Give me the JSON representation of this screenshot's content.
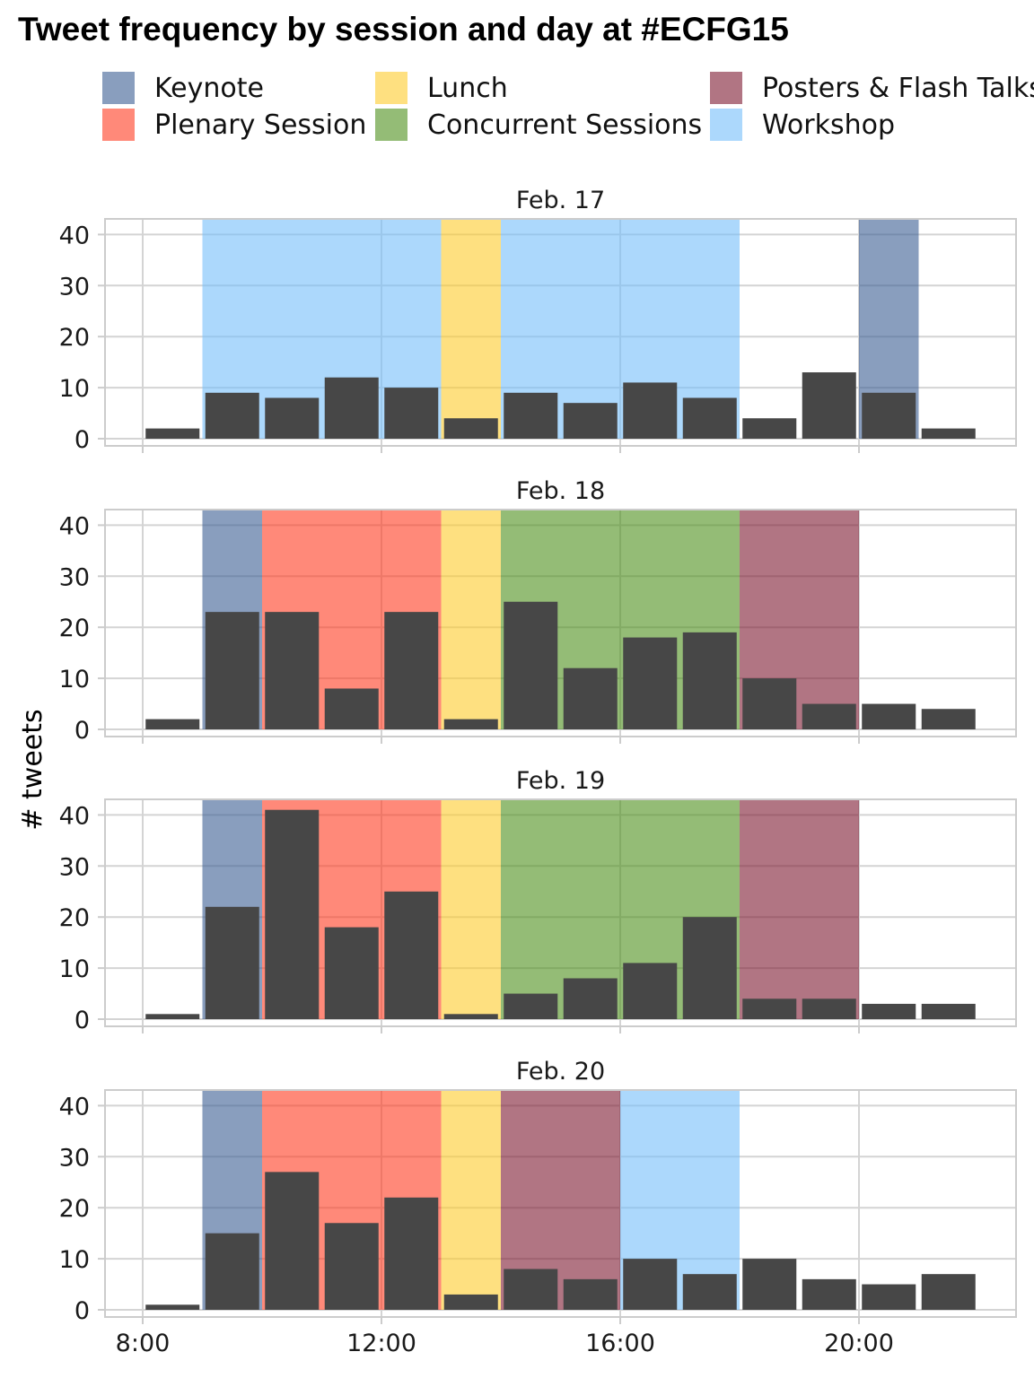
{
  "chart_data": {
    "type": "bar",
    "title": "Tweet frequency by session and day at #ECFG15",
    "ylabel": "# tweets",
    "xlabel": "",
    "hours": [
      8,
      9,
      10,
      11,
      12,
      13,
      14,
      15,
      16,
      17,
      18,
      19,
      20,
      21
    ],
    "x_ticks": [
      "8:00",
      "12:00",
      "16:00",
      "20:00"
    ],
    "x_tick_hours": [
      8,
      12,
      16,
      20
    ],
    "ylim": [
      0,
      43
    ],
    "y_ticks": [
      0,
      10,
      20,
      30,
      40
    ],
    "grid": true,
    "legend_position": "top",
    "sessions": [
      {
        "key": "keynote",
        "name": "Keynote",
        "color": "#3B5D92"
      },
      {
        "key": "plenary",
        "name": "Plenary Session",
        "color": "#FF3B1F"
      },
      {
        "key": "lunch",
        "name": "Lunch",
        "color": "#FDCB2B"
      },
      {
        "key": "concurrent",
        "name": "Concurrent Sessions",
        "color": "#4C8F1B"
      },
      {
        "key": "posters",
        "name": "Posters & Flash Talks",
        "color": "#7D1930"
      },
      {
        "key": "workshop",
        "name": "Workshop",
        "color": "#75BEFA"
      }
    ],
    "panels": [
      {
        "label": "Feb. 17",
        "values": [
          2,
          9,
          8,
          12,
          10,
          4,
          9,
          7,
          11,
          8,
          4,
          13,
          9,
          2
        ],
        "sessions": [
          {
            "session": "workshop",
            "start": 9,
            "end": 13
          },
          {
            "session": "lunch",
            "start": 13,
            "end": 14
          },
          {
            "session": "workshop",
            "start": 14,
            "end": 18
          },
          {
            "session": "keynote",
            "start": 20,
            "end": 21
          }
        ]
      },
      {
        "label": "Feb. 18",
        "values": [
          2,
          23,
          23,
          8,
          23,
          2,
          25,
          12,
          18,
          19,
          10,
          5,
          5,
          4
        ],
        "sessions": [
          {
            "session": "keynote",
            "start": 9,
            "end": 10
          },
          {
            "session": "plenary",
            "start": 10,
            "end": 13
          },
          {
            "session": "lunch",
            "start": 13,
            "end": 14
          },
          {
            "session": "concurrent",
            "start": 14,
            "end": 18
          },
          {
            "session": "posters",
            "start": 18,
            "end": 20
          }
        ]
      },
      {
        "label": "Feb. 19",
        "values": [
          1,
          22,
          41,
          18,
          25,
          1,
          5,
          8,
          11,
          20,
          4,
          4,
          3,
          3
        ],
        "sessions": [
          {
            "session": "keynote",
            "start": 9,
            "end": 10
          },
          {
            "session": "plenary",
            "start": 10,
            "end": 13
          },
          {
            "session": "lunch",
            "start": 13,
            "end": 14
          },
          {
            "session": "concurrent",
            "start": 14,
            "end": 18
          },
          {
            "session": "posters",
            "start": 18,
            "end": 20
          }
        ]
      },
      {
        "label": "Feb. 20",
        "values": [
          1,
          15,
          27,
          17,
          22,
          3,
          8,
          6,
          10,
          7,
          10,
          6,
          5,
          7
        ],
        "sessions": [
          {
            "session": "keynote",
            "start": 9,
            "end": 10
          },
          {
            "session": "plenary",
            "start": 10,
            "end": 13
          },
          {
            "session": "lunch",
            "start": 13,
            "end": 14
          },
          {
            "session": "posters",
            "start": 14,
            "end": 16
          },
          {
            "session": "workshop",
            "start": 16,
            "end": 18
          }
        ]
      }
    ]
  }
}
